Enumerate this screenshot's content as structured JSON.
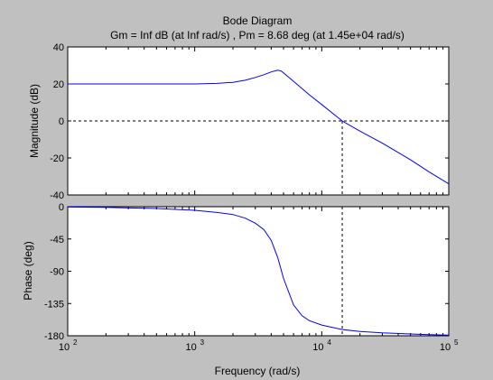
{
  "chart_data": [
    {
      "type": "line",
      "title": "Bode Diagram",
      "subtitle": "Gm = Inf dB (at Inf rad/s) ,  Pm = 8.68 deg (at 1.45e+04 rad/s)",
      "ylabel": "Magnitude (dB)",
      "xscale": "log",
      "xlim": [
        100,
        100000
      ],
      "ylim": [
        -40,
        40
      ],
      "yticks": [
        -40,
        -20,
        0,
        20,
        40
      ],
      "grid": false,
      "series": [
        {
          "color": "#0000ff",
          "x": [
            100,
            200,
            500,
            1000,
            1500,
            2000,
            2500,
            3000,
            3500,
            4000,
            4500,
            4800,
            5200,
            6000,
            7000,
            8000,
            10000,
            14500,
            20000,
            30000,
            50000,
            70000,
            100000
          ],
          "y": [
            20,
            20,
            20,
            20,
            20.3,
            20.9,
            22,
            23.5,
            25,
            26.5,
            27.4,
            27,
            25,
            21.4,
            17.5,
            14.1,
            8.9,
            0,
            -5.5,
            -12,
            -21,
            -27.5,
            -34
          ]
        }
      ],
      "reference_lines": {
        "y": 0,
        "x": 14500,
        "style": "dashed"
      }
    },
    {
      "type": "line",
      "xlabel": "Frequency  (rad/s)",
      "ylabel": "Phase (deg)",
      "xscale": "log",
      "xlim": [
        100,
        100000
      ],
      "ylim": [
        -180,
        0
      ],
      "yticks": [
        0,
        -45,
        -90,
        -135,
        -180
      ],
      "xticks": [
        "10",
        "10",
        "10",
        "10"
      ],
      "xtick_exponents": [
        "2",
        "3",
        "4",
        "5"
      ],
      "grid": false,
      "series": [
        {
          "color": "#0000ff",
          "x": [
            100,
            200,
            500,
            1000,
            1500,
            2000,
            2500,
            3000,
            3500,
            4000,
            4500,
            5000,
            6000,
            7000,
            8000,
            10000,
            14500,
            20000,
            30000,
            50000,
            70000,
            100000
          ],
          "y": [
            -0.5,
            -1,
            -2.5,
            -5,
            -8,
            -11,
            -16,
            -23,
            -32,
            -47,
            -71,
            -100,
            -137,
            -152,
            -159,
            -165,
            -171.3,
            -174,
            -176,
            -177.5,
            -178.5,
            -179
          ]
        }
      ],
      "reference_lines": {
        "y": -180,
        "x": 14500,
        "style": "dashed"
      }
    }
  ]
}
